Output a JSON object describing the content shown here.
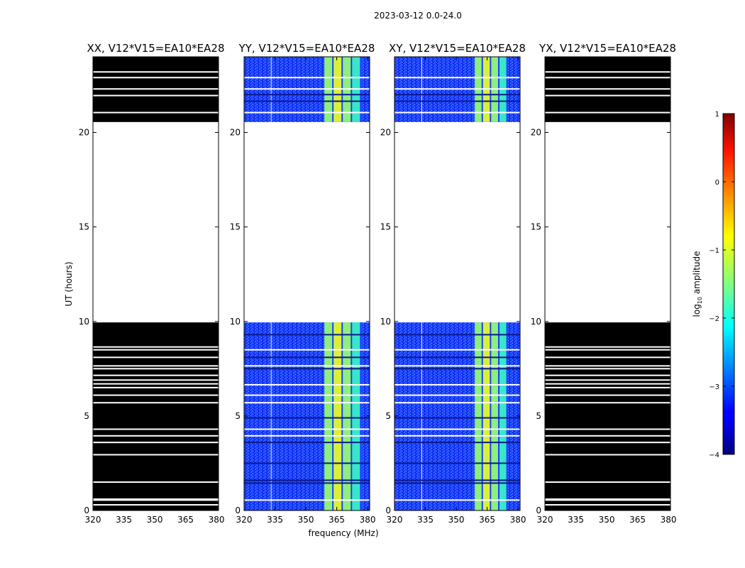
{
  "figure_title": "2023-03-12 0.0-24.0",
  "colors": {
    "frame": "#000000",
    "flagged_black": "#000000",
    "gap_white": "#ffffff",
    "bg_blue": "#1a3cff",
    "band_cyan": "#39e6c8",
    "band_green": "#8cf07a",
    "band_yellow": "#d8f03a",
    "dark_stripe": "#0a1a8a"
  },
  "chart_data": [
    {
      "type": "heatmap",
      "title": "XX, V12*V15=EA10*EA28",
      "polarization": "XX",
      "xlabel": "",
      "ylabel": "UT (hours)",
      "xlim": [
        320,
        381
      ],
      "ylim": [
        0,
        24
      ],
      "xticks": [
        320,
        335,
        350,
        365,
        380
      ],
      "yticks": [
        0,
        5,
        10,
        15,
        20
      ],
      "rendering": "flagged",
      "data_ranges_ut": [
        [
          0.0,
          9.95
        ],
        [
          20.55,
          24.0
        ]
      ],
      "white_gaps_ut": [
        0.3,
        0.55,
        0.6,
        1.5,
        2.95,
        3.6,
        3.95,
        4.3,
        5.7,
        6.1,
        6.5,
        6.7,
        6.9,
        7.15,
        7.5,
        7.65,
        8.1,
        8.5,
        8.65,
        21.05,
        21.95,
        22.3,
        22.9,
        23.2
      ]
    },
    {
      "type": "heatmap",
      "title": "YY, V12*V15=EA10*EA28",
      "polarization": "YY",
      "xlabel": "frequency (MHz)",
      "ylabel": "",
      "xlim": [
        320,
        381
      ],
      "ylim": [
        0,
        24
      ],
      "xticks": [
        320,
        335,
        350,
        365,
        380
      ],
      "yticks": [
        0,
        5,
        10,
        15,
        20
      ],
      "rendering": "spectrum",
      "data_ranges_ut": [
        [
          0.0,
          9.95
        ],
        [
          20.55,
          24.0
        ]
      ],
      "white_gaps_ut": [
        0.55,
        3.95,
        4.3,
        5.7,
        6.1,
        6.65,
        7.65,
        8.5,
        21.05,
        22.3,
        22.9
      ],
      "dark_lines_ut": [
        1.45,
        1.6,
        2.5,
        3.6,
        4.9,
        7.5,
        8.1,
        9.3,
        21.65,
        22.0
      ],
      "band_mhz": [
        359,
        377
      ]
    },
    {
      "type": "heatmap",
      "title": "XY, V12*V15=EA10*EA28",
      "polarization": "XY",
      "xlabel": "",
      "ylabel": "",
      "xlim": [
        320,
        381
      ],
      "ylim": [
        0,
        24
      ],
      "xticks": [
        320,
        335,
        350,
        365,
        380
      ],
      "yticks": [
        0,
        5,
        10,
        15,
        20
      ],
      "rendering": "spectrum",
      "data_ranges_ut": [
        [
          0.0,
          9.95
        ],
        [
          20.55,
          24.0
        ]
      ],
      "white_gaps_ut": [
        0.55,
        3.95,
        4.3,
        5.7,
        6.1,
        6.65,
        7.65,
        8.5,
        21.05,
        22.3,
        22.9
      ],
      "dark_lines_ut": [
        1.45,
        1.6,
        2.5,
        3.6,
        4.9,
        7.5,
        8.1,
        9.3,
        21.65,
        22.0
      ],
      "band_mhz": [
        359,
        375
      ]
    },
    {
      "type": "heatmap",
      "title": "YX, V12*V15=EA10*EA28",
      "polarization": "YX",
      "xlabel": "",
      "ylabel": "",
      "xlim": [
        320,
        381
      ],
      "ylim": [
        0,
        24
      ],
      "xticks": [
        320,
        335,
        350,
        365,
        380
      ],
      "yticks": [
        0,
        5,
        10,
        15,
        20
      ],
      "rendering": "flagged",
      "data_ranges_ut": [
        [
          0.0,
          9.95
        ],
        [
          20.55,
          24.0
        ]
      ],
      "white_gaps_ut": [
        0.3,
        0.55,
        0.6,
        1.5,
        2.95,
        3.6,
        3.95,
        4.3,
        5.7,
        6.1,
        6.5,
        6.7,
        6.9,
        7.15,
        7.5,
        7.65,
        8.1,
        8.5,
        8.65,
        21.05,
        21.95,
        22.3,
        22.9,
        23.2
      ]
    }
  ],
  "colorbar": {
    "label_prefix": "log",
    "label_sub": "10",
    "label_suffix": " amplitude",
    "range": [
      -4,
      1
    ],
    "ticks": [
      "1",
      "0",
      "−1",
      "−2",
      "−3",
      "−4"
    ],
    "tick_values": [
      1,
      0,
      -1,
      -2,
      -3,
      -4
    ],
    "colormap": "jet"
  }
}
